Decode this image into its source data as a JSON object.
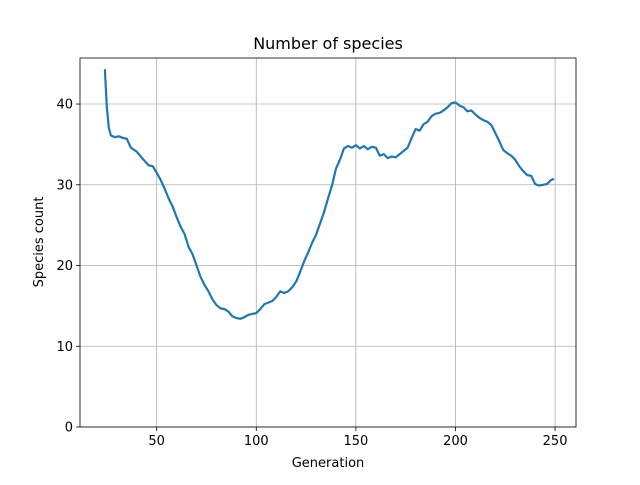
{
  "chart_data": {
    "type": "line",
    "title": "Number of species",
    "xlabel": "Generation",
    "ylabel": "Species count",
    "xlim": [
      11.5,
      260.5
    ],
    "ylim": [
      0,
      45.7
    ],
    "xticks": [
      50,
      100,
      150,
      200,
      250
    ],
    "yticks": [
      0,
      10,
      20,
      30,
      40
    ],
    "xtick_labels": [
      "50",
      "100",
      "150",
      "200",
      "250"
    ],
    "ytick_labels": [
      "0",
      "10",
      "20",
      "30",
      "40"
    ],
    "grid": true,
    "colors": {
      "line": "#1f77b4",
      "grid": "#b0b0b0",
      "frame": "#000000"
    },
    "series": [
      {
        "x": [
          24,
          25,
          26,
          27,
          29,
          31,
          33,
          35,
          37,
          40,
          43,
          46,
          48,
          50,
          52,
          54,
          56,
          58,
          60,
          62,
          64,
          66,
          68,
          70,
          72,
          74,
          76,
          78,
          80,
          82,
          84,
          86,
          88,
          90,
          92,
          94,
          96,
          98,
          100,
          102,
          104,
          106,
          108,
          110,
          112,
          114,
          116,
          118,
          120,
          122,
          124,
          126,
          128,
          130,
          132,
          134,
          136,
          138,
          140,
          142,
          144,
          146,
          148,
          150,
          152,
          154,
          156,
          158,
          160,
          162,
          164,
          166,
          168,
          170,
          172,
          174,
          176,
          178,
          180,
          182,
          184,
          186,
          188,
          190,
          192,
          194,
          196,
          198,
          200,
          202,
          204,
          206,
          208,
          210,
          212,
          214,
          216,
          218,
          220,
          222,
          224,
          226,
          228,
          230,
          232,
          234,
          236,
          238,
          240,
          242,
          244,
          246,
          248,
          249
        ],
        "values": [
          44.2,
          39.5,
          37.0,
          36.1,
          35.9,
          36.0,
          35.8,
          35.7,
          34.6,
          34.1,
          33.2,
          32.4,
          32.3,
          31.5,
          30.6,
          29.5,
          28.3,
          27.3,
          26.0,
          24.8,
          23.9,
          22.3,
          21.4,
          20.0,
          18.6,
          17.6,
          16.8,
          15.8,
          15.1,
          14.7,
          14.6,
          14.3,
          13.7,
          13.5,
          13.4,
          13.6,
          13.9,
          14.0,
          14.1,
          14.6,
          15.2,
          15.4,
          15.6,
          16.1,
          16.8,
          16.6,
          16.8,
          17.3,
          18.0,
          19.2,
          20.5,
          21.6,
          22.8,
          23.8,
          25.2,
          26.6,
          28.3,
          29.9,
          32.0,
          33.1,
          34.5,
          34.8,
          34.6,
          34.9,
          34.5,
          34.8,
          34.4,
          34.7,
          34.6,
          33.6,
          33.8,
          33.3,
          33.5,
          33.4,
          33.8,
          34.2,
          34.6,
          35.8,
          36.9,
          36.7,
          37.5,
          37.8,
          38.5,
          38.8,
          38.9,
          39.2,
          39.6,
          40.1,
          40.2,
          39.8,
          39.6,
          39.1,
          39.2,
          38.7,
          38.3,
          38.0,
          37.8,
          37.4,
          36.4,
          35.4,
          34.3,
          33.9,
          33.6,
          33.1,
          32.3,
          31.7,
          31.2,
          31.1,
          30.1,
          29.9,
          30.0,
          30.1,
          30.6,
          30.7
        ]
      }
    ]
  }
}
